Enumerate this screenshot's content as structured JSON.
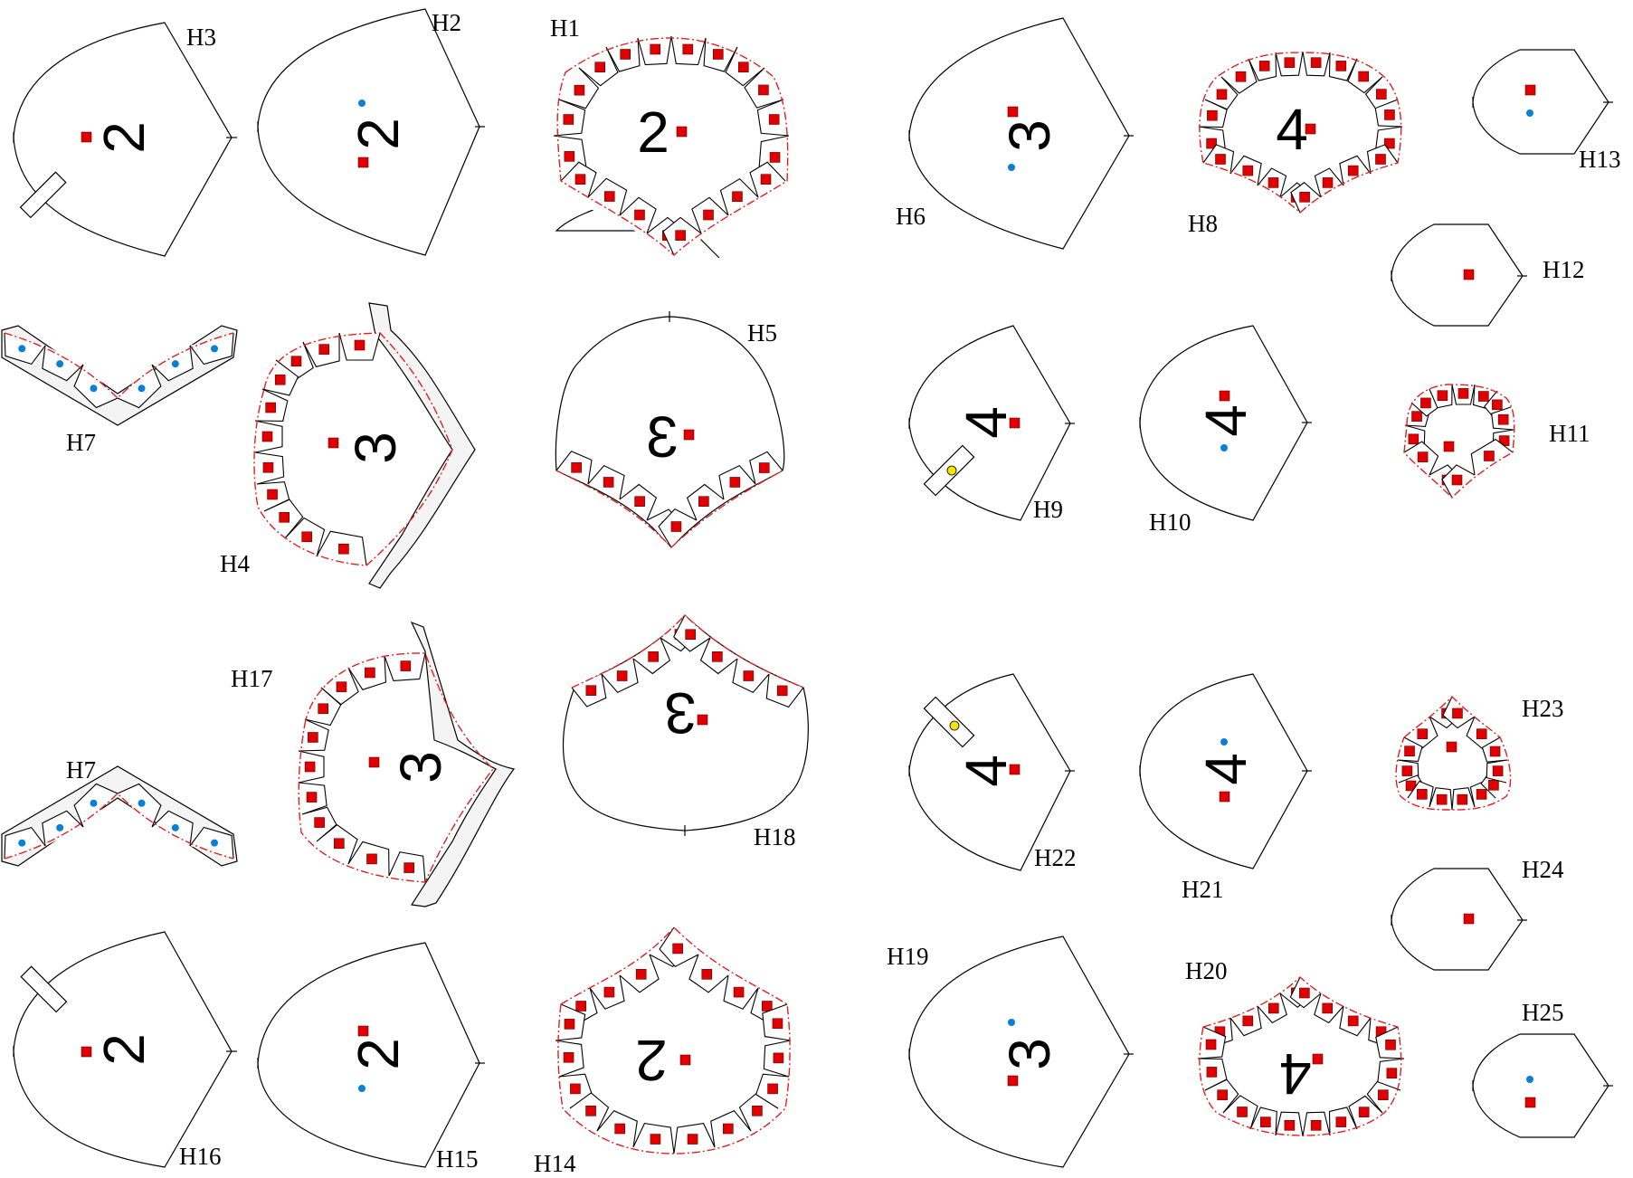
{
  "pieces": {
    "H1": "H1",
    "H2": "H2",
    "H3": "H3",
    "H4": "H4",
    "H5": "H5",
    "H6": "H6",
    "H7": "H7",
    "H8": "H8",
    "H9": "H9",
    "H10": "H10",
    "H11": "H11",
    "H12": "H12",
    "H13": "H13",
    "H14": "H14",
    "H15": "H15",
    "H16": "H16",
    "H17": "H17",
    "H18": "H18",
    "H19": "H19",
    "H20": "H20",
    "H21": "H21",
    "H22": "H22",
    "H23": "H23",
    "H24": "H24",
    "H25": "H25"
  },
  "numbers": {
    "two": "2",
    "three": "3",
    "four": "4"
  },
  "colors": {
    "outline": "#000000",
    "seam": "#e02020",
    "square_marker": "#e00000",
    "dot_marker": "#0a7fd6",
    "yellow_marker": "#f5e400",
    "band_fill": "#f4f4f4"
  },
  "legend_icons": [
    "red-square-marker",
    "blue-dot-marker",
    "yellow-circle-marker"
  ]
}
